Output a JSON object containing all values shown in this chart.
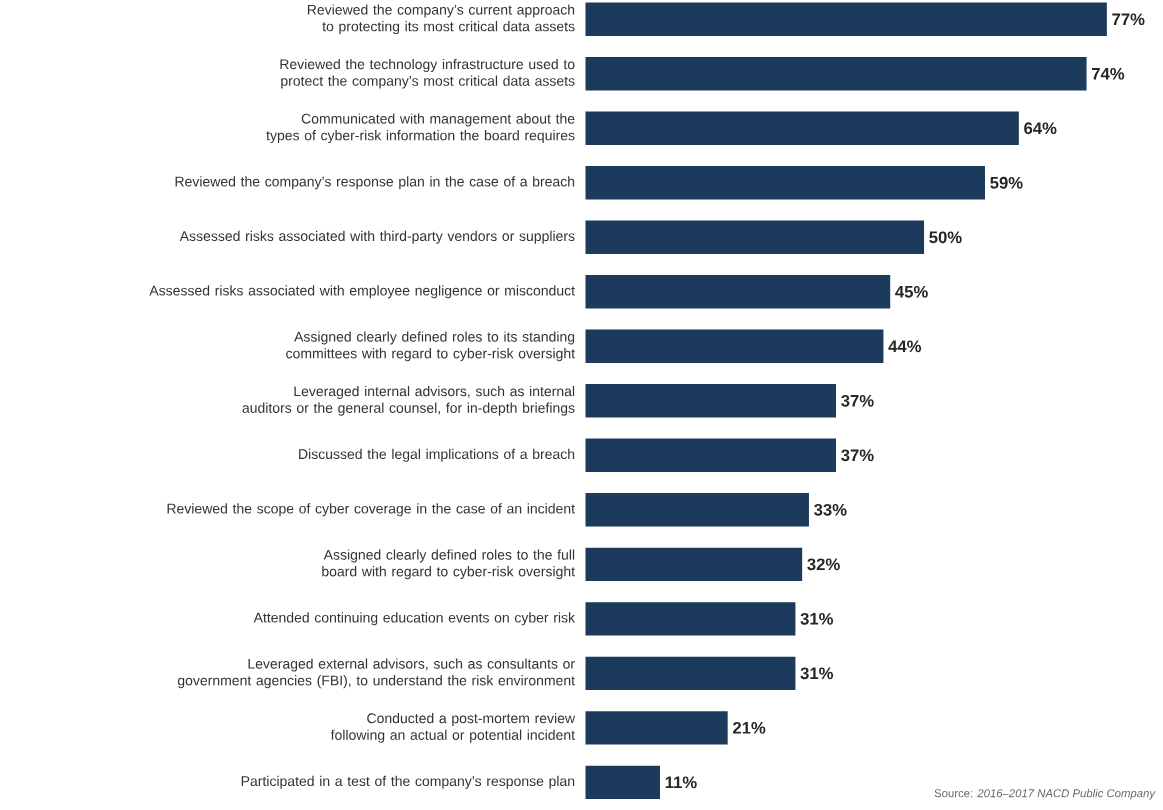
{
  "chart_data": {
    "type": "bar",
    "orientation": "horizontal",
    "color": "#1b3a5c",
    "categories": [
      "Reviewed the company’s current approach to protecting its most critical data assets",
      "Reviewed the technology infrastructure used to protect the company’s most critical data assets",
      "Communicated with management about the types of cyber-risk information the board requires",
      "Reviewed the company’s response plan in the case of a breach",
      "Assessed risks associated with third-party vendors or suppliers",
      "Assessed risks associated with employee negligence or misconduct",
      "Assigned clearly defined roles to its standing committees with regard to cyber-risk oversight",
      "Leveraged internal advisors, such as internal auditors or the general counsel, for in-depth briefings",
      "Discussed the legal implications of a breach",
      "Reviewed the scope of cyber coverage in the case of an incident",
      "Assigned clearly defined roles to the full board with regard to cyber-risk oversight",
      "Attended continuing education events on cyber risk",
      "Leveraged external advisors, such as consultants or government agencies (FBI), to understand the risk environment",
      "Conducted a post-mortem review following an actual or potential incident",
      "Participated in a test of the company’s response plan"
    ],
    "values": [
      77,
      74,
      64,
      59,
      50,
      45,
      44,
      37,
      37,
      33,
      32,
      31,
      31,
      21,
      11
    ],
    "value_labels": [
      "77%",
      "74%",
      "64%",
      "59%",
      "50%",
      "45%",
      "44%",
      "37%",
      "37%",
      "33%",
      "32%",
      "31%",
      "31%",
      "21%",
      "11%"
    ],
    "annotations": [
      "Source: *2016–2017 NACD Public Company*"
    ]
  }
}
